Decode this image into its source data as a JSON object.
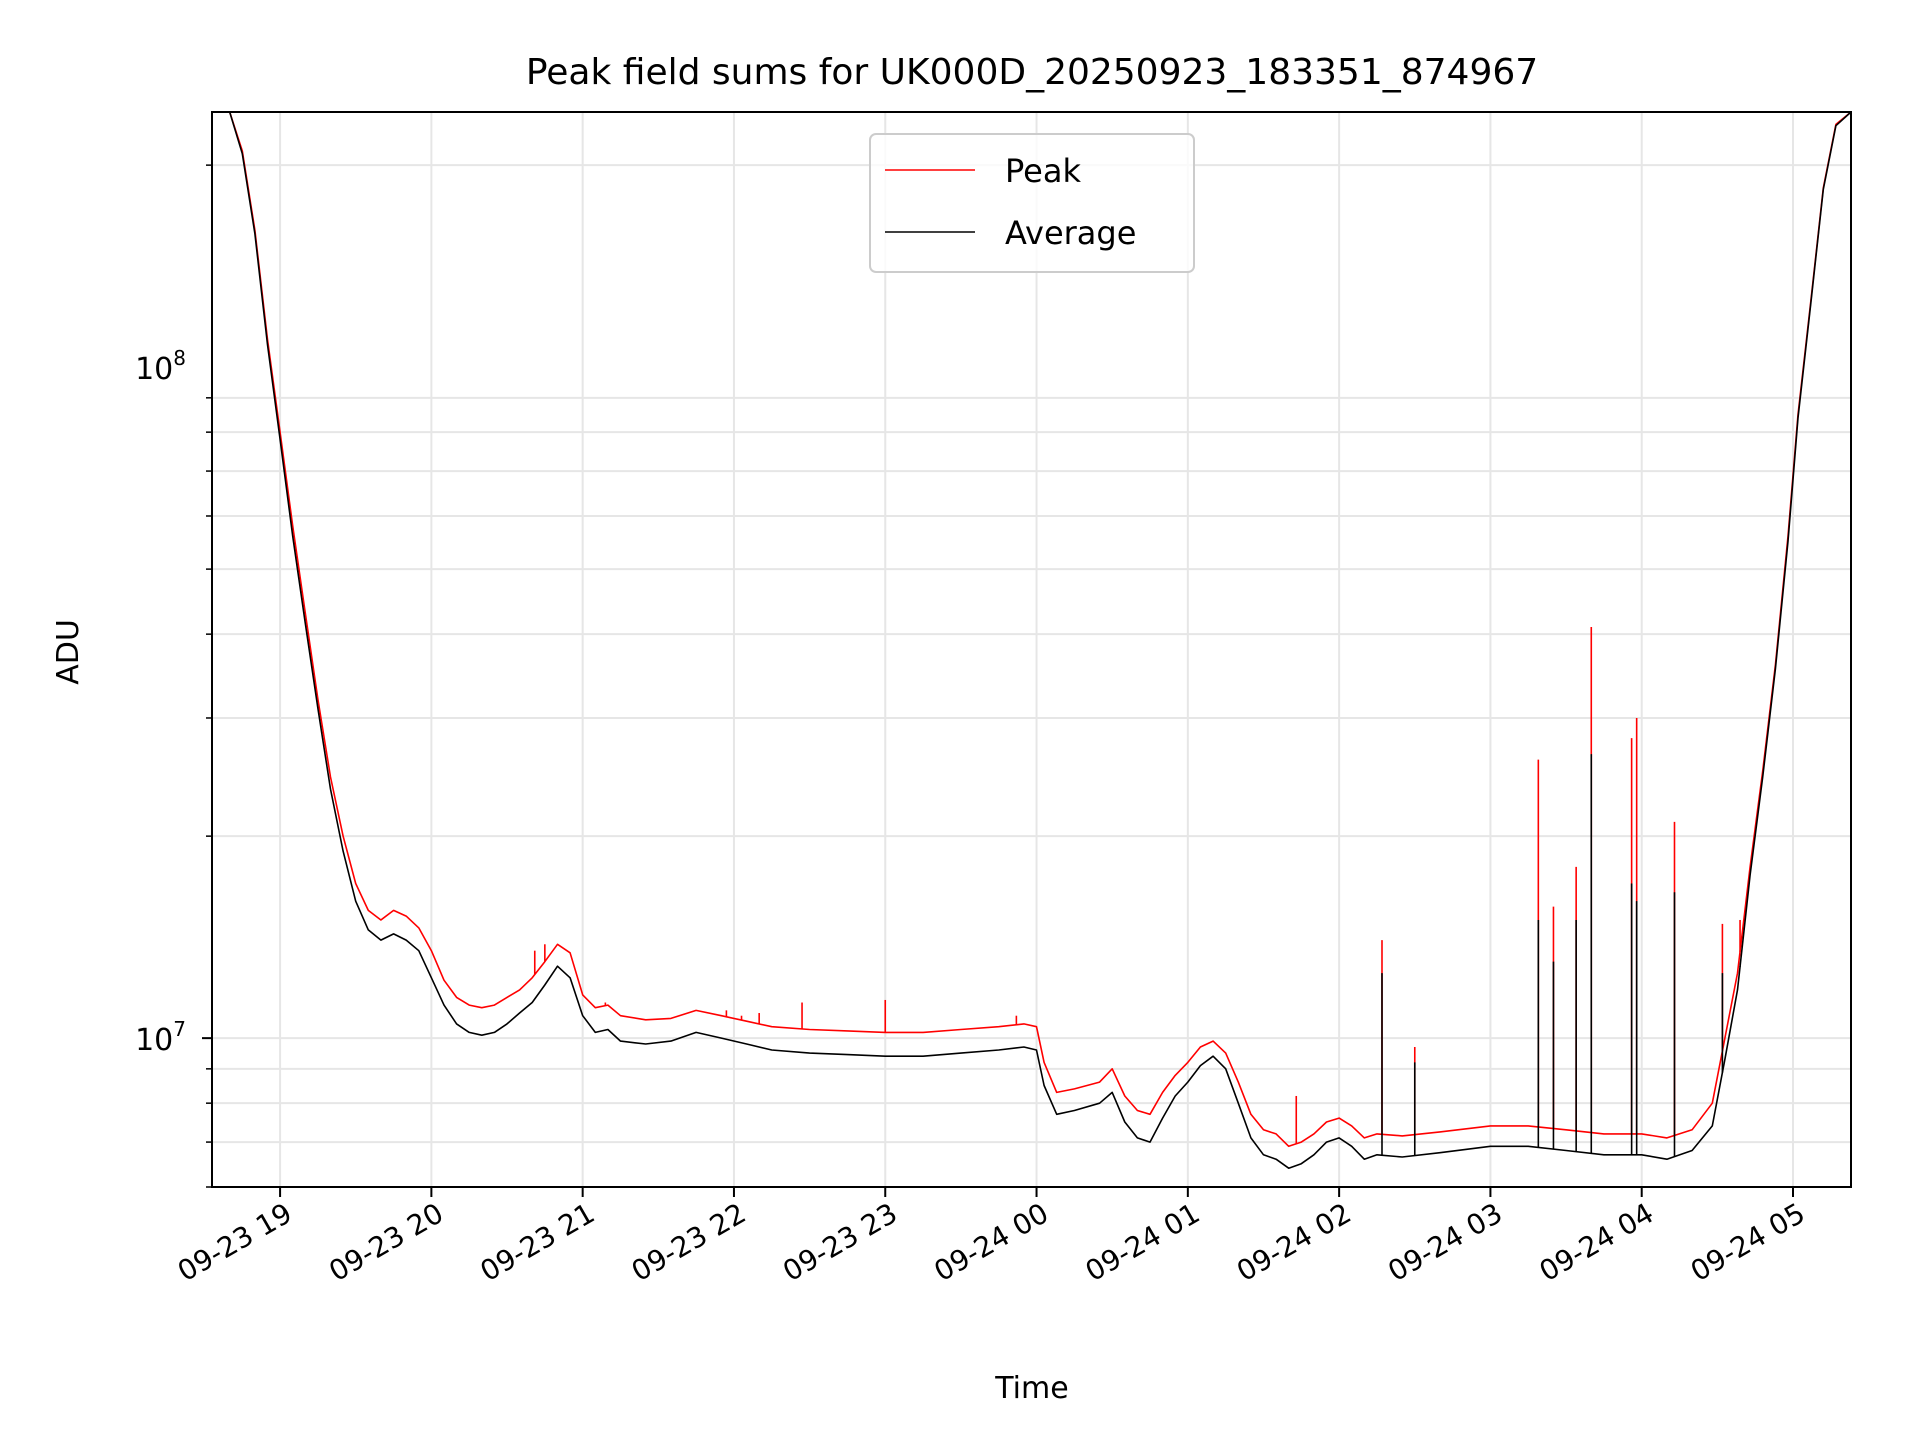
{
  "chart_data": {
    "type": "line",
    "title": "Peak field sums for UK000D_20250923_183351_874967",
    "xlabel": "Time",
    "ylabel": "ADU",
    "y_scale": "log",
    "grid": true,
    "legend_position": "top-center",
    "xlim": [
      "2025-09-23T18:33",
      "2025-09-24T05:23"
    ],
    "ylim": [
      6000000,
      240000000
    ],
    "x_ticks": [
      {
        "t": "2025-09-23T19:00",
        "label": "09-23 19"
      },
      {
        "t": "2025-09-23T20:00",
        "label": "09-23 20"
      },
      {
        "t": "2025-09-23T21:00",
        "label": "09-23 21"
      },
      {
        "t": "2025-09-23T22:00",
        "label": "09-23 22"
      },
      {
        "t": "2025-09-23T23:00",
        "label": "09-23 23"
      },
      {
        "t": "2025-09-24T00:00",
        "label": "09-24 00"
      },
      {
        "t": "2025-09-24T01:00",
        "label": "09-24 01"
      },
      {
        "t": "2025-09-24T02:00",
        "label": "09-24 02"
      },
      {
        "t": "2025-09-24T03:00",
        "label": "09-24 03"
      },
      {
        "t": "2025-09-24T04:00",
        "label": "09-24 04"
      },
      {
        "t": "2025-09-24T05:00",
        "label": "09-24 05"
      }
    ],
    "y_ticks": [
      {
        "value": 10000000,
        "base": "10",
        "exp": "7"
      },
      {
        "value": 100000000,
        "base": "10",
        "exp": "8"
      }
    ],
    "series": [
      {
        "name": "Peak",
        "color": "#ff0000",
        "points": [
          [
            "2025-09-23T18:33",
            240000000
          ],
          [
            "2025-09-23T18:40",
            240000000
          ],
          [
            "2025-09-23T18:45",
            210000000
          ],
          [
            "2025-09-23T18:50",
            160000000
          ],
          [
            "2025-09-23T18:55",
            110000000
          ],
          [
            "2025-09-23T19:00",
            80000000
          ],
          [
            "2025-09-23T19:05",
            58000000
          ],
          [
            "2025-09-23T19:10",
            43000000
          ],
          [
            "2025-09-23T19:15",
            32000000
          ],
          [
            "2025-09-23T19:20",
            24500000
          ],
          [
            "2025-09-23T19:25",
            20000000
          ],
          [
            "2025-09-23T19:30",
            17000000
          ],
          [
            "2025-09-23T19:35",
            15500000
          ],
          [
            "2025-09-23T19:40",
            15000000
          ],
          [
            "2025-09-23T19:45",
            15500000
          ],
          [
            "2025-09-23T19:50",
            15200000
          ],
          [
            "2025-09-23T19:55",
            14600000
          ],
          [
            "2025-09-23T20:00",
            13500000
          ],
          [
            "2025-09-23T20:05",
            12200000
          ],
          [
            "2025-09-23T20:10",
            11500000
          ],
          [
            "2025-09-23T20:15",
            11200000
          ],
          [
            "2025-09-23T20:20",
            11100000
          ],
          [
            "2025-09-23T20:25",
            11200000
          ],
          [
            "2025-09-23T20:30",
            11500000
          ],
          [
            "2025-09-23T20:35",
            11800000
          ],
          [
            "2025-09-23T20:40",
            12300000
          ],
          [
            "2025-09-23T20:45",
            13000000
          ],
          [
            "2025-09-23T20:50",
            13800000
          ],
          [
            "2025-09-23T20:55",
            13400000
          ],
          [
            "2025-09-23T21:00",
            11600000
          ],
          [
            "2025-09-23T21:05",
            11100000
          ],
          [
            "2025-09-23T21:10",
            11200000
          ],
          [
            "2025-09-23T21:15",
            10800000
          ],
          [
            "2025-09-23T21:25",
            10650000
          ],
          [
            "2025-09-23T21:35",
            10700000
          ],
          [
            "2025-09-23T21:45",
            11000000
          ],
          [
            "2025-09-23T21:55",
            10800000
          ],
          [
            "2025-09-23T22:05",
            10600000
          ],
          [
            "2025-09-23T22:15",
            10400000
          ],
          [
            "2025-09-23T22:30",
            10300000
          ],
          [
            "2025-09-23T22:45",
            10250000
          ],
          [
            "2025-09-23T23:00",
            10200000
          ],
          [
            "2025-09-23T23:15",
            10200000
          ],
          [
            "2025-09-23T23:30",
            10300000
          ],
          [
            "2025-09-23T23:45",
            10400000
          ],
          [
            "2025-09-23T23:55",
            10500000
          ],
          [
            "2025-09-24T00:00",
            10400000
          ],
          [
            "2025-09-24T00:03",
            9200000
          ],
          [
            "2025-09-24T00:08",
            8300000
          ],
          [
            "2025-09-24T00:15",
            8400000
          ],
          [
            "2025-09-24T00:25",
            8600000
          ],
          [
            "2025-09-24T00:30",
            9000000
          ],
          [
            "2025-09-24T00:35",
            8200000
          ],
          [
            "2025-09-24T00:40",
            7800000
          ],
          [
            "2025-09-24T00:45",
            7700000
          ],
          [
            "2025-09-24T00:50",
            8300000
          ],
          [
            "2025-09-24T00:55",
            8800000
          ],
          [
            "2025-09-24T01:00",
            9200000
          ],
          [
            "2025-09-24T01:05",
            9700000
          ],
          [
            "2025-09-24T01:10",
            9900000
          ],
          [
            "2025-09-24T01:15",
            9500000
          ],
          [
            "2025-09-24T01:20",
            8600000
          ],
          [
            "2025-09-24T01:25",
            7700000
          ],
          [
            "2025-09-24T01:30",
            7300000
          ],
          [
            "2025-09-24T01:35",
            7200000
          ],
          [
            "2025-09-24T01:40",
            6900000
          ],
          [
            "2025-09-24T01:45",
            7000000
          ],
          [
            "2025-09-24T01:50",
            7200000
          ],
          [
            "2025-09-24T01:55",
            7500000
          ],
          [
            "2025-09-24T02:00",
            7600000
          ],
          [
            "2025-09-24T02:05",
            7400000
          ],
          [
            "2025-09-24T02:10",
            7100000
          ],
          [
            "2025-09-24T02:15",
            7200000
          ],
          [
            "2025-09-24T02:25",
            7150000
          ],
          [
            "2025-09-24T02:40",
            7250000
          ],
          [
            "2025-09-24T03:00",
            7400000
          ],
          [
            "2025-09-24T03:15",
            7400000
          ],
          [
            "2025-09-24T03:30",
            7300000
          ],
          [
            "2025-09-24T03:45",
            7200000
          ],
          [
            "2025-09-24T04:00",
            7200000
          ],
          [
            "2025-09-24T04:10",
            7100000
          ],
          [
            "2025-09-24T04:20",
            7300000
          ],
          [
            "2025-09-24T04:28",
            8000000
          ],
          [
            "2025-09-24T04:33",
            10000000
          ],
          [
            "2025-09-24T04:38",
            12500000
          ],
          [
            "2025-09-24T04:43",
            18000000
          ],
          [
            "2025-09-24T04:48",
            25000000
          ],
          [
            "2025-09-24T04:53",
            36000000
          ],
          [
            "2025-09-24T04:58",
            56000000
          ],
          [
            "2025-09-24T05:02",
            85000000
          ],
          [
            "2025-09-24T05:07",
            125000000
          ],
          [
            "2025-09-24T05:12",
            185000000
          ],
          [
            "2025-09-24T05:17",
            230000000
          ],
          [
            "2025-09-24T05:23",
            240000000
          ]
        ],
        "spikes": [
          [
            "2025-09-23T20:41",
            13500000
          ],
          [
            "2025-09-23T20:45",
            13800000
          ],
          [
            "2025-09-23T21:09",
            11300000
          ],
          [
            "2025-09-23T21:57",
            11000000
          ],
          [
            "2025-09-23T22:03",
            10800000
          ],
          [
            "2025-09-23T22:10",
            10900000
          ],
          [
            "2025-09-23T22:27",
            11300000
          ],
          [
            "2025-09-23T23:00",
            11400000
          ],
          [
            "2025-09-23T23:52",
            10800000
          ],
          [
            "2025-09-24T01:43",
            8200000
          ],
          [
            "2025-09-24T02:17",
            14000000
          ],
          [
            "2025-09-24T02:30",
            9700000
          ],
          [
            "2025-09-24T03:19",
            26000000
          ],
          [
            "2025-09-24T03:25",
            15700000
          ],
          [
            "2025-09-24T03:34",
            18000000
          ],
          [
            "2025-09-24T03:40",
            41000000
          ],
          [
            "2025-09-24T03:56",
            28000000
          ],
          [
            "2025-09-24T03:58",
            30000000
          ],
          [
            "2025-09-24T04:13",
            21000000
          ],
          [
            "2025-09-24T04:32",
            14800000
          ],
          [
            "2025-09-24T04:39",
            15000000
          ]
        ]
      },
      {
        "name": "Average",
        "color": "#000000",
        "points": [
          [
            "2025-09-23T18:33",
            240000000
          ],
          [
            "2025-09-23T18:40",
            240000000
          ],
          [
            "2025-09-23T18:45",
            208000000
          ],
          [
            "2025-09-23T18:50",
            158000000
          ],
          [
            "2025-09-23T18:55",
            108000000
          ],
          [
            "2025-09-23T19:00",
            78000000
          ],
          [
            "2025-09-23T19:05",
            56000000
          ],
          [
            "2025-09-23T19:10",
            41500000
          ],
          [
            "2025-09-23T19:15",
            31000000
          ],
          [
            "2025-09-23T19:20",
            23500000
          ],
          [
            "2025-09-23T19:25",
            19000000
          ],
          [
            "2025-09-23T19:30",
            16000000
          ],
          [
            "2025-09-23T19:35",
            14500000
          ],
          [
            "2025-09-23T19:40",
            14000000
          ],
          [
            "2025-09-23T19:45",
            14300000
          ],
          [
            "2025-09-23T19:50",
            14000000
          ],
          [
            "2025-09-23T19:55",
            13500000
          ],
          [
            "2025-09-23T20:00",
            12300000
          ],
          [
            "2025-09-23T20:05",
            11200000
          ],
          [
            "2025-09-23T20:10",
            10500000
          ],
          [
            "2025-09-23T20:15",
            10200000
          ],
          [
            "2025-09-23T20:20",
            10100000
          ],
          [
            "2025-09-23T20:25",
            10200000
          ],
          [
            "2025-09-23T20:30",
            10500000
          ],
          [
            "2025-09-23T20:35",
            10900000
          ],
          [
            "2025-09-23T20:40",
            11300000
          ],
          [
            "2025-09-23T20:45",
            12000000
          ],
          [
            "2025-09-23T20:50",
            12800000
          ],
          [
            "2025-09-23T20:55",
            12300000
          ],
          [
            "2025-09-23T21:00",
            10800000
          ],
          [
            "2025-09-23T21:05",
            10200000
          ],
          [
            "2025-09-23T21:10",
            10300000
          ],
          [
            "2025-09-23T21:15",
            9900000
          ],
          [
            "2025-09-23T21:25",
            9800000
          ],
          [
            "2025-09-23T21:35",
            9900000
          ],
          [
            "2025-09-23T21:45",
            10200000
          ],
          [
            "2025-09-23T21:55",
            10000000
          ],
          [
            "2025-09-23T22:05",
            9800000
          ],
          [
            "2025-09-23T22:15",
            9600000
          ],
          [
            "2025-09-23T22:30",
            9500000
          ],
          [
            "2025-09-23T22:45",
            9450000
          ],
          [
            "2025-09-23T23:00",
            9400000
          ],
          [
            "2025-09-23T23:15",
            9400000
          ],
          [
            "2025-09-23T23:30",
            9500000
          ],
          [
            "2025-09-23T23:45",
            9600000
          ],
          [
            "2025-09-23T23:55",
            9700000
          ],
          [
            "2025-09-24T00:00",
            9600000
          ],
          [
            "2025-09-24T00:03",
            8500000
          ],
          [
            "2025-09-24T00:08",
            7700000
          ],
          [
            "2025-09-24T00:15",
            7800000
          ],
          [
            "2025-09-24T00:25",
            8000000
          ],
          [
            "2025-09-24T00:30",
            8300000
          ],
          [
            "2025-09-24T00:35",
            7500000
          ],
          [
            "2025-09-24T00:40",
            7100000
          ],
          [
            "2025-09-24T00:45",
            7000000
          ],
          [
            "2025-09-24T00:50",
            7600000
          ],
          [
            "2025-09-24T00:55",
            8200000
          ],
          [
            "2025-09-24T01:00",
            8600000
          ],
          [
            "2025-09-24T01:05",
            9100000
          ],
          [
            "2025-09-24T01:10",
            9400000
          ],
          [
            "2025-09-24T01:15",
            9000000
          ],
          [
            "2025-09-24T01:20",
            8000000
          ],
          [
            "2025-09-24T01:25",
            7100000
          ],
          [
            "2025-09-24T01:30",
            6700000
          ],
          [
            "2025-09-24T01:35",
            6600000
          ],
          [
            "2025-09-24T01:40",
            6400000
          ],
          [
            "2025-09-24T01:45",
            6500000
          ],
          [
            "2025-09-24T01:50",
            6700000
          ],
          [
            "2025-09-24T01:55",
            7000000
          ],
          [
            "2025-09-24T02:00",
            7100000
          ],
          [
            "2025-09-24T02:05",
            6900000
          ],
          [
            "2025-09-24T02:10",
            6600000
          ],
          [
            "2025-09-24T02:15",
            6700000
          ],
          [
            "2025-09-24T02:25",
            6650000
          ],
          [
            "2025-09-24T02:40",
            6750000
          ],
          [
            "2025-09-24T03:00",
            6900000
          ],
          [
            "2025-09-24T03:15",
            6900000
          ],
          [
            "2025-09-24T03:30",
            6800000
          ],
          [
            "2025-09-24T03:45",
            6700000
          ],
          [
            "2025-09-24T04:00",
            6700000
          ],
          [
            "2025-09-24T04:10",
            6600000
          ],
          [
            "2025-09-24T04:20",
            6800000
          ],
          [
            "2025-09-24T04:28",
            7400000
          ],
          [
            "2025-09-24T04:33",
            9300000
          ],
          [
            "2025-09-24T04:38",
            11800000
          ],
          [
            "2025-09-24T04:43",
            17500000
          ],
          [
            "2025-09-24T04:48",
            24500000
          ],
          [
            "2025-09-24T04:53",
            35500000
          ],
          [
            "2025-09-24T04:58",
            55000000
          ],
          [
            "2025-09-24T05:02",
            84000000
          ],
          [
            "2025-09-24T05:07",
            124000000
          ],
          [
            "2025-09-24T05:12",
            184000000
          ],
          [
            "2025-09-24T05:17",
            229000000
          ],
          [
            "2025-09-24T05:23",
            240000000
          ]
        ],
        "spikes": [
          [
            "2025-09-24T02:17",
            12500000
          ],
          [
            "2025-09-24T02:30",
            9200000
          ],
          [
            "2025-09-24T03:19",
            15000000
          ],
          [
            "2025-09-24T03:25",
            13000000
          ],
          [
            "2025-09-24T03:34",
            15000000
          ],
          [
            "2025-09-24T03:40",
            26500000
          ],
          [
            "2025-09-24T03:56",
            17000000
          ],
          [
            "2025-09-24T03:58",
            16000000
          ],
          [
            "2025-09-24T04:13",
            16500000
          ],
          [
            "2025-09-24T04:32",
            12500000
          ],
          [
            "2025-09-24T04:39",
            12800000
          ]
        ]
      }
    ]
  }
}
